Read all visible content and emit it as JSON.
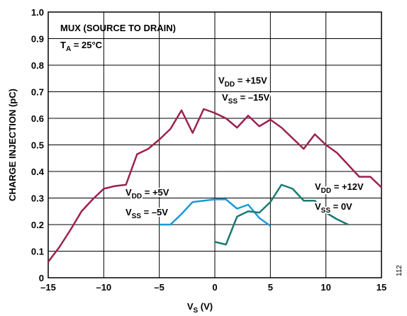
{
  "chart_data": {
    "type": "line",
    "x_label": {
      "text": "V",
      "sub": "S",
      "rest": " (V)"
    },
    "y_label": "CHARGE INJECTION (pC)",
    "title": "MUX (SOURCE TO DRAIN)",
    "subtitle": {
      "text": "T",
      "sub": "A",
      "rest": " = 25°C"
    },
    "figure_number": "112",
    "xlim": [
      -15,
      15
    ],
    "xticks": [
      {
        "value": -15,
        "label": "–15"
      },
      {
        "value": -10,
        "label": "–10"
      },
      {
        "value": -5,
        "label": "–5"
      },
      0,
      5,
      10,
      15
    ],
    "ylim": [
      0,
      1
    ],
    "yticks": [
      0,
      0.1,
      0.2,
      0.3,
      0.4,
      0.5,
      0.6,
      0.7,
      0.8,
      0.9,
      {
        "value": 1,
        "label": "1.0"
      }
    ],
    "grid": true,
    "series": [
      {
        "color": "#9b2150",
        "x": [
          -15,
          -14,
          -13,
          -12,
          -11,
          -10,
          -9,
          -8,
          -7,
          -6,
          -5,
          -4,
          -3,
          -2,
          -1,
          0,
          1,
          2,
          3,
          4,
          5,
          6,
          7,
          8,
          9,
          10,
          11,
          12,
          13,
          14,
          15
        ],
        "values": [
          0.06,
          0.115,
          0.18,
          0.25,
          0.295,
          0.335,
          0.345,
          0.35,
          0.465,
          0.485,
          0.52,
          0.56,
          0.63,
          0.545,
          0.635,
          0.62,
          0.6,
          0.565,
          0.61,
          0.57,
          0.595,
          0.565,
          0.525,
          0.485,
          0.54,
          0.5,
          0.47,
          0.425,
          0.38,
          0.38,
          0.34
        ]
      },
      {
        "color": "#1a9ad6",
        "x": [
          -5,
          -4,
          -3,
          -2,
          -1,
          0,
          1,
          2,
          3,
          4,
          5
        ],
        "values": [
          0.2,
          0.2,
          0.24,
          0.285,
          0.29,
          0.295,
          0.295,
          0.26,
          0.275,
          0.225,
          0.195
        ]
      },
      {
        "color": "#1a7a72",
        "x": [
          0,
          1,
          2,
          3,
          4,
          5,
          6,
          7,
          8,
          9,
          10,
          11,
          12
        ],
        "values": [
          0.135,
          0.125,
          0.23,
          0.25,
          0.245,
          0.285,
          0.35,
          0.335,
          0.29,
          0.29,
          0.245,
          0.22,
          0.2
        ]
      }
    ],
    "annotations": [
      {
        "text": "V",
        "sub": "DD",
        "rest": " = +15V"
      },
      {
        "text": "V",
        "sub": "SS",
        "rest": " = –15V"
      },
      {
        "text": "V",
        "sub": "DD",
        "rest": " = +5V"
      },
      {
        "text": "V",
        "sub": "SS",
        "rest": " = –5V"
      },
      {
        "text": "V",
        "sub": "DD",
        "rest": " = +12V"
      },
      {
        "text": "V",
        "sub": "SS",
        "rest": " = 0V"
      }
    ]
  }
}
